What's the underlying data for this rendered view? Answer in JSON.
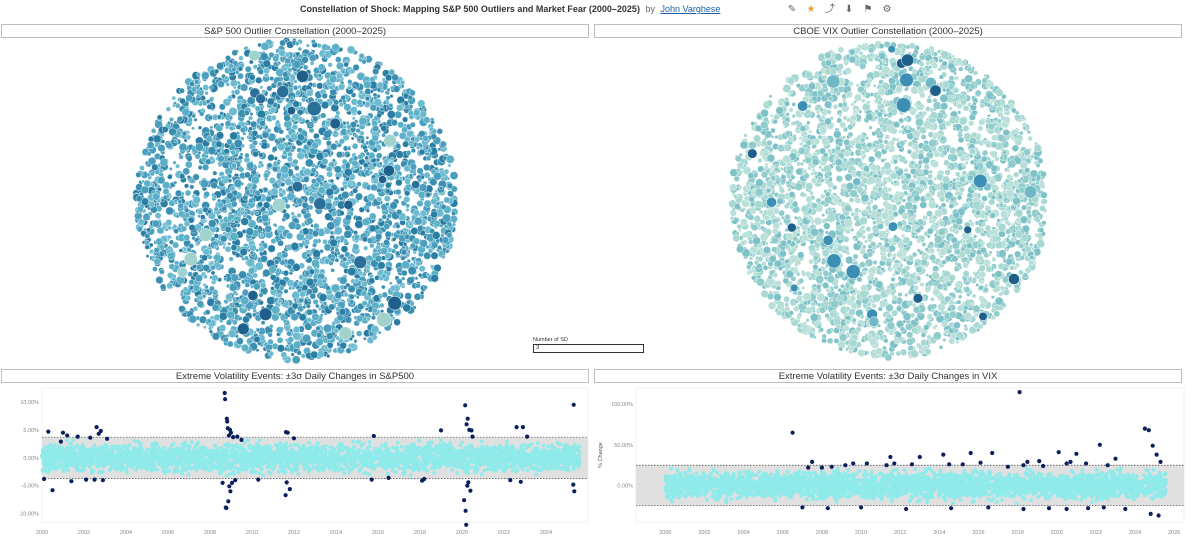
{
  "header": {
    "title": "Constellation of Shock: Mapping S&P 500 Outliers and Market Fear (2000–2025)",
    "by": "by",
    "author": "John Varghese"
  },
  "toolbar": {
    "icons": [
      "edit-icon",
      "star-icon",
      "share-icon",
      "download-icon",
      "subscribe-icon",
      "settings-icon"
    ]
  },
  "panels": {
    "sp_bubbles_title": "S&P 500 Outlier Constellation (2000–2025)",
    "vix_bubbles_title": "CBOE VIX Outlier Constellation (2000–2025)",
    "sp_scatter_title": "Extreme Volatility Events: ±3σ Daily Changes in S&P500",
    "vix_scatter_title": "Extreme Volatility Events: ±3σ Daily Changes in VIX"
  },
  "control": {
    "label": "Number of SD",
    "value": "3"
  },
  "colors": {
    "sp_bubble_palette": [
      "#4a9fbe",
      "#3a8fb0",
      "#5bb0c8",
      "#2a7ea3",
      "#6bbad0"
    ],
    "sp_bubble_highlight": "#9fd3cc",
    "vix_bubble_palette": [
      "#a8d8d2",
      "#90cccc",
      "#7ec2c8",
      "#b8e0d8"
    ],
    "accent_dark": "#1f5f8b",
    "normal_points": "#8feaea",
    "outlier_points": "#0b1f5c",
    "band": "#e0e0e0"
  },
  "chart_data": [
    {
      "type": "scatter",
      "title": "Extreme Volatility Events: ±3σ Daily Changes in S&P500",
      "xlabel": "",
      "ylabel": "",
      "x_ticks": [
        "2000",
        "2002",
        "2004",
        "2006",
        "2008",
        "2010",
        "2012",
        "2014",
        "2016",
        "2018",
        "2020",
        "2022",
        "2024"
      ],
      "y_ticks": [
        "10.00%",
        "5.00%",
        "0.00%",
        "-5.00%",
        "-10.00%"
      ],
      "xlim": [
        2000,
        2026
      ],
      "ylim": [
        -11.5,
        12.5
      ],
      "band": [
        -3.7,
        3.7
      ],
      "outliers": [
        [
          2000.1,
          -3.8
        ],
        [
          2000.3,
          4.7
        ],
        [
          2000.5,
          -5.8
        ],
        [
          2000.9,
          2.9
        ],
        [
          2001.0,
          4.5
        ],
        [
          2001.2,
          4.0
        ],
        [
          2001.4,
          -4.2
        ],
        [
          2001.7,
          3.8
        ],
        [
          2002.1,
          -3.9
        ],
        [
          2002.3,
          3.6
        ],
        [
          2002.5,
          -3.9
        ],
        [
          2002.6,
          5.5
        ],
        [
          2002.7,
          4.3
        ],
        [
          2002.8,
          4.8
        ],
        [
          2002.9,
          -4.0
        ],
        [
          2003.1,
          3.4
        ],
        [
          2008.6,
          -4.5
        ],
        [
          2008.7,
          11.6
        ],
        [
          2008.72,
          10.5
        ],
        [
          2008.75,
          -8.9
        ],
        [
          2008.78,
          -9.0
        ],
        [
          2008.8,
          7.0
        ],
        [
          2008.82,
          6.5
        ],
        [
          2008.85,
          5.3
        ],
        [
          2008.87,
          -7.8
        ],
        [
          2008.9,
          4.0
        ],
        [
          2008.92,
          -5.1
        ],
        [
          2008.95,
          5.0
        ],
        [
          2008.97,
          -6.0
        ],
        [
          2009.0,
          4.5
        ],
        [
          2009.05,
          -4.5
        ],
        [
          2009.1,
          3.7
        ],
        [
          2009.2,
          -4.0
        ],
        [
          2009.3,
          3.8
        ],
        [
          2009.5,
          3.2
        ],
        [
          2010.3,
          -3.9
        ],
        [
          2011.6,
          -6.7
        ],
        [
          2011.62,
          4.6
        ],
        [
          2011.65,
          -4.4
        ],
        [
          2011.7,
          4.5
        ],
        [
          2011.8,
          -5.6
        ],
        [
          2012.0,
          3.5
        ],
        [
          2015.7,
          -3.9
        ],
        [
          2015.8,
          3.9
        ],
        [
          2016.5,
          -3.6
        ],
        [
          2018.1,
          -4.1
        ],
        [
          2018.2,
          -3.8
        ],
        [
          2019.0,
          4.9
        ],
        [
          2020.1,
          -7.6
        ],
        [
          2020.15,
          9.4
        ],
        [
          2020.17,
          -9.5
        ],
        [
          2020.2,
          -12.0
        ],
        [
          2020.22,
          6.0
        ],
        [
          2020.25,
          -5.0
        ],
        [
          2020.27,
          7.0
        ],
        [
          2020.3,
          -4.4
        ],
        [
          2020.35,
          5.0
        ],
        [
          2020.4,
          -5.9
        ],
        [
          2020.45,
          4.9
        ],
        [
          2020.5,
          3.8
        ],
        [
          2022.3,
          -4.0
        ],
        [
          2022.6,
          5.5
        ],
        [
          2022.8,
          -4.3
        ],
        [
          2022.9,
          5.5
        ],
        [
          2023.1,
          3.8
        ],
        [
          2025.3,
          -4.8
        ],
        [
          2025.32,
          9.5
        ],
        [
          2025.35,
          -6.0
        ]
      ]
    },
    {
      "type": "scatter",
      "title": "Extreme Volatility Events: ±3σ Daily Changes in VIX",
      "xlabel": "",
      "ylabel": "% Change",
      "x_ticks": [
        "2000",
        "2002",
        "2004",
        "2006",
        "2008",
        "2010",
        "2012",
        "2014",
        "2016",
        "2018",
        "2020",
        "2022",
        "2024",
        "2026"
      ],
      "y_ticks": [
        "100.00%",
        "50.00%",
        "0.00%"
      ],
      "xlim": [
        1998.5,
        2026.5
      ],
      "ylim": [
        -45,
        120
      ],
      "band": [
        -25,
        25
      ],
      "outliers": [
        [
          2006.5,
          65
        ],
        [
          2007.3,
          22
        ],
        [
          2007.5,
          29
        ],
        [
          2008.0,
          22
        ],
        [
          2008.5,
          23
        ],
        [
          2009.2,
          25
        ],
        [
          2009.6,
          27
        ],
        [
          2010.3,
          27
        ],
        [
          2011.3,
          25
        ],
        [
          2011.5,
          35
        ],
        [
          2011.7,
          27
        ],
        [
          2012.6,
          26
        ],
        [
          2013.0,
          35
        ],
        [
          2014.2,
          38
        ],
        [
          2014.5,
          26
        ],
        [
          2015.2,
          26
        ],
        [
          2015.6,
          40
        ],
        [
          2016.1,
          28
        ],
        [
          2016.7,
          40
        ],
        [
          2017.5,
          23
        ],
        [
          2018.1,
          115
        ],
        [
          2018.3,
          25
        ],
        [
          2018.5,
          29
        ],
        [
          2019.1,
          30
        ],
        [
          2019.3,
          24
        ],
        [
          2020.1,
          41
        ],
        [
          2020.5,
          27
        ],
        [
          2020.7,
          29
        ],
        [
          2021.0,
          39
        ],
        [
          2021.5,
          27
        ],
        [
          2022.2,
          50
        ],
        [
          2022.6,
          25
        ],
        [
          2023.0,
          33
        ],
        [
          2024.5,
          70
        ],
        [
          2024.7,
          68
        ],
        [
          2024.9,
          49
        ],
        [
          2025.1,
          38
        ],
        [
          2025.3,
          29
        ],
        [
          2007.0,
          -27
        ],
        [
          2008.3,
          -28
        ],
        [
          2010.0,
          -27
        ],
        [
          2012.3,
          -29
        ],
        [
          2014.6,
          -28
        ],
        [
          2016.5,
          -27
        ],
        [
          2018.3,
          -29
        ],
        [
          2019.6,
          -28
        ],
        [
          2020.5,
          -29
        ],
        [
          2021.6,
          -28
        ],
        [
          2022.4,
          -27
        ],
        [
          2023.5,
          -29
        ],
        [
          2024.8,
          -35
        ],
        [
          2025.2,
          -37
        ]
      ]
    }
  ]
}
